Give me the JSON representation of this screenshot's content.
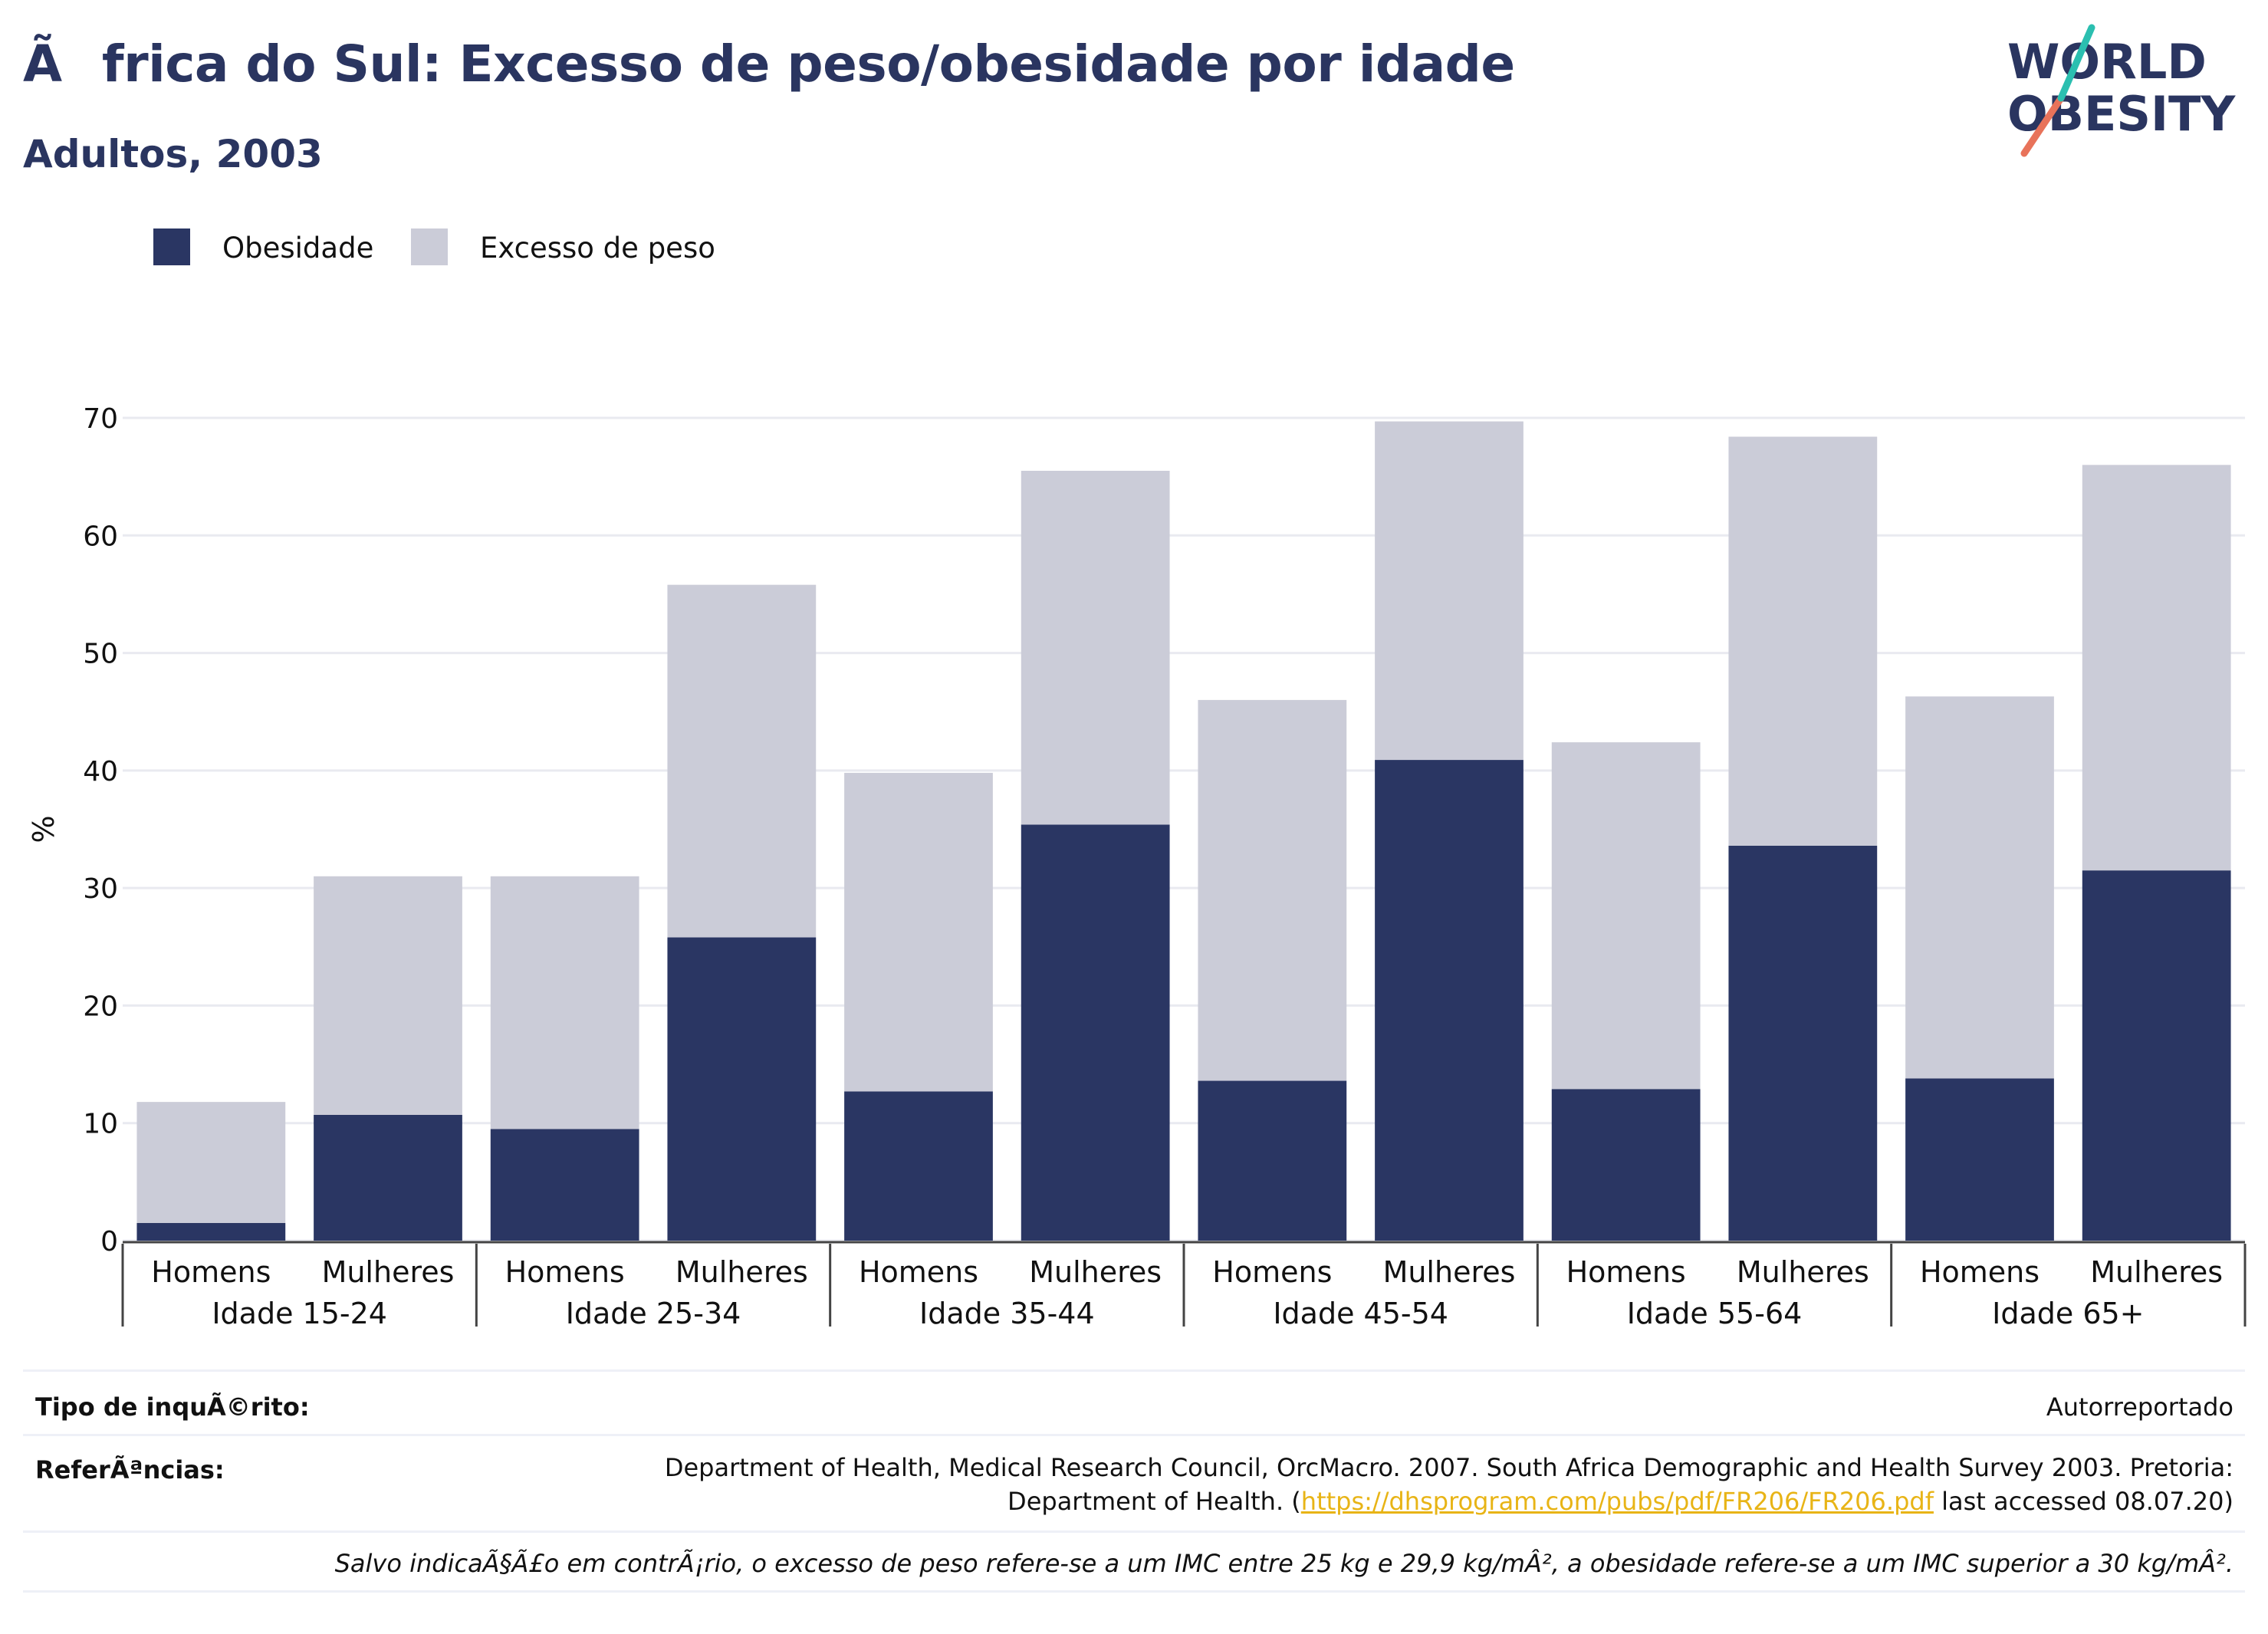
{
  "header": {
    "title": "Ãfrica do Sul: Excesso de peso/obesidade por idade",
    "subtitle": "Adultos, 2003"
  },
  "logo": {
    "line1": "WORLD",
    "line2": "OBESITY",
    "text_color": "#2a3560",
    "slash_colors": [
      "#e8735a",
      "#2bbfb0"
    ]
  },
  "legend": {
    "items": [
      {
        "label": "Obesidade",
        "color": "#2a3663"
      },
      {
        "label": "Excesso de peso",
        "color": "#cbccd8"
      }
    ]
  },
  "chart_data": {
    "type": "bar",
    "stacked": true,
    "ylabel": "%",
    "ylim": [
      0,
      70
    ],
    "yticks": [
      0,
      10,
      20,
      30,
      40,
      50,
      60,
      70
    ],
    "grid": true,
    "legend_position": "top-left",
    "groups": [
      {
        "label": "Idade 15-24",
        "categories": [
          "Homens",
          "Mulheres"
        ]
      },
      {
        "label": "Idade 25-34",
        "categories": [
          "Homens",
          "Mulheres"
        ]
      },
      {
        "label": "Idade 35-44",
        "categories": [
          "Homens",
          "Mulheres"
        ]
      },
      {
        "label": "Idade 45-54",
        "categories": [
          "Homens",
          "Mulheres"
        ]
      },
      {
        "label": "Idade 55-64",
        "categories": [
          "Homens",
          "Mulheres"
        ]
      },
      {
        "label": "Idade 65+",
        "categories": [
          "Homens",
          "Mulheres"
        ]
      }
    ],
    "series": [
      {
        "name": "Obesidade",
        "color": "#2a3663",
        "values": [
          1.5,
          10.7,
          9.5,
          25.8,
          12.7,
          35.4,
          13.6,
          40.9,
          12.9,
          33.6,
          13.8,
          31.5
        ]
      },
      {
        "name": "Excesso de peso",
        "color": "#cbccd8",
        "values": [
          10.3,
          20.3,
          21.5,
          30.0,
          27.1,
          30.1,
          32.4,
          28.8,
          29.5,
          34.8,
          32.5,
          34.5
        ]
      }
    ]
  },
  "footer": {
    "survey_label": "Tipo de inquÃ©rito:",
    "survey_value": "Autorreportado",
    "refs_label": "ReferÃªncias:",
    "refs_text_1": "Department of Health, Medical Research Council, OrcMacro. 2007. South Africa Demographic and Health Survey 2003. Pretoria:",
    "refs_text_2": "Department of Health. (",
    "refs_link": "https://dhsprogram.com/pubs/pdf/FR206/FR206.pdf",
    "refs_text_3": " last accessed 08.07.20)",
    "note": "Salvo indicaÃ§Ã£o em contrÃ¡rio, o excesso de peso refere-se a um IMC entre 25 kg e 29,9 kg/mÂ², a obesidade refere-se a um IMC superior a 30 kg/mÂ²."
  }
}
